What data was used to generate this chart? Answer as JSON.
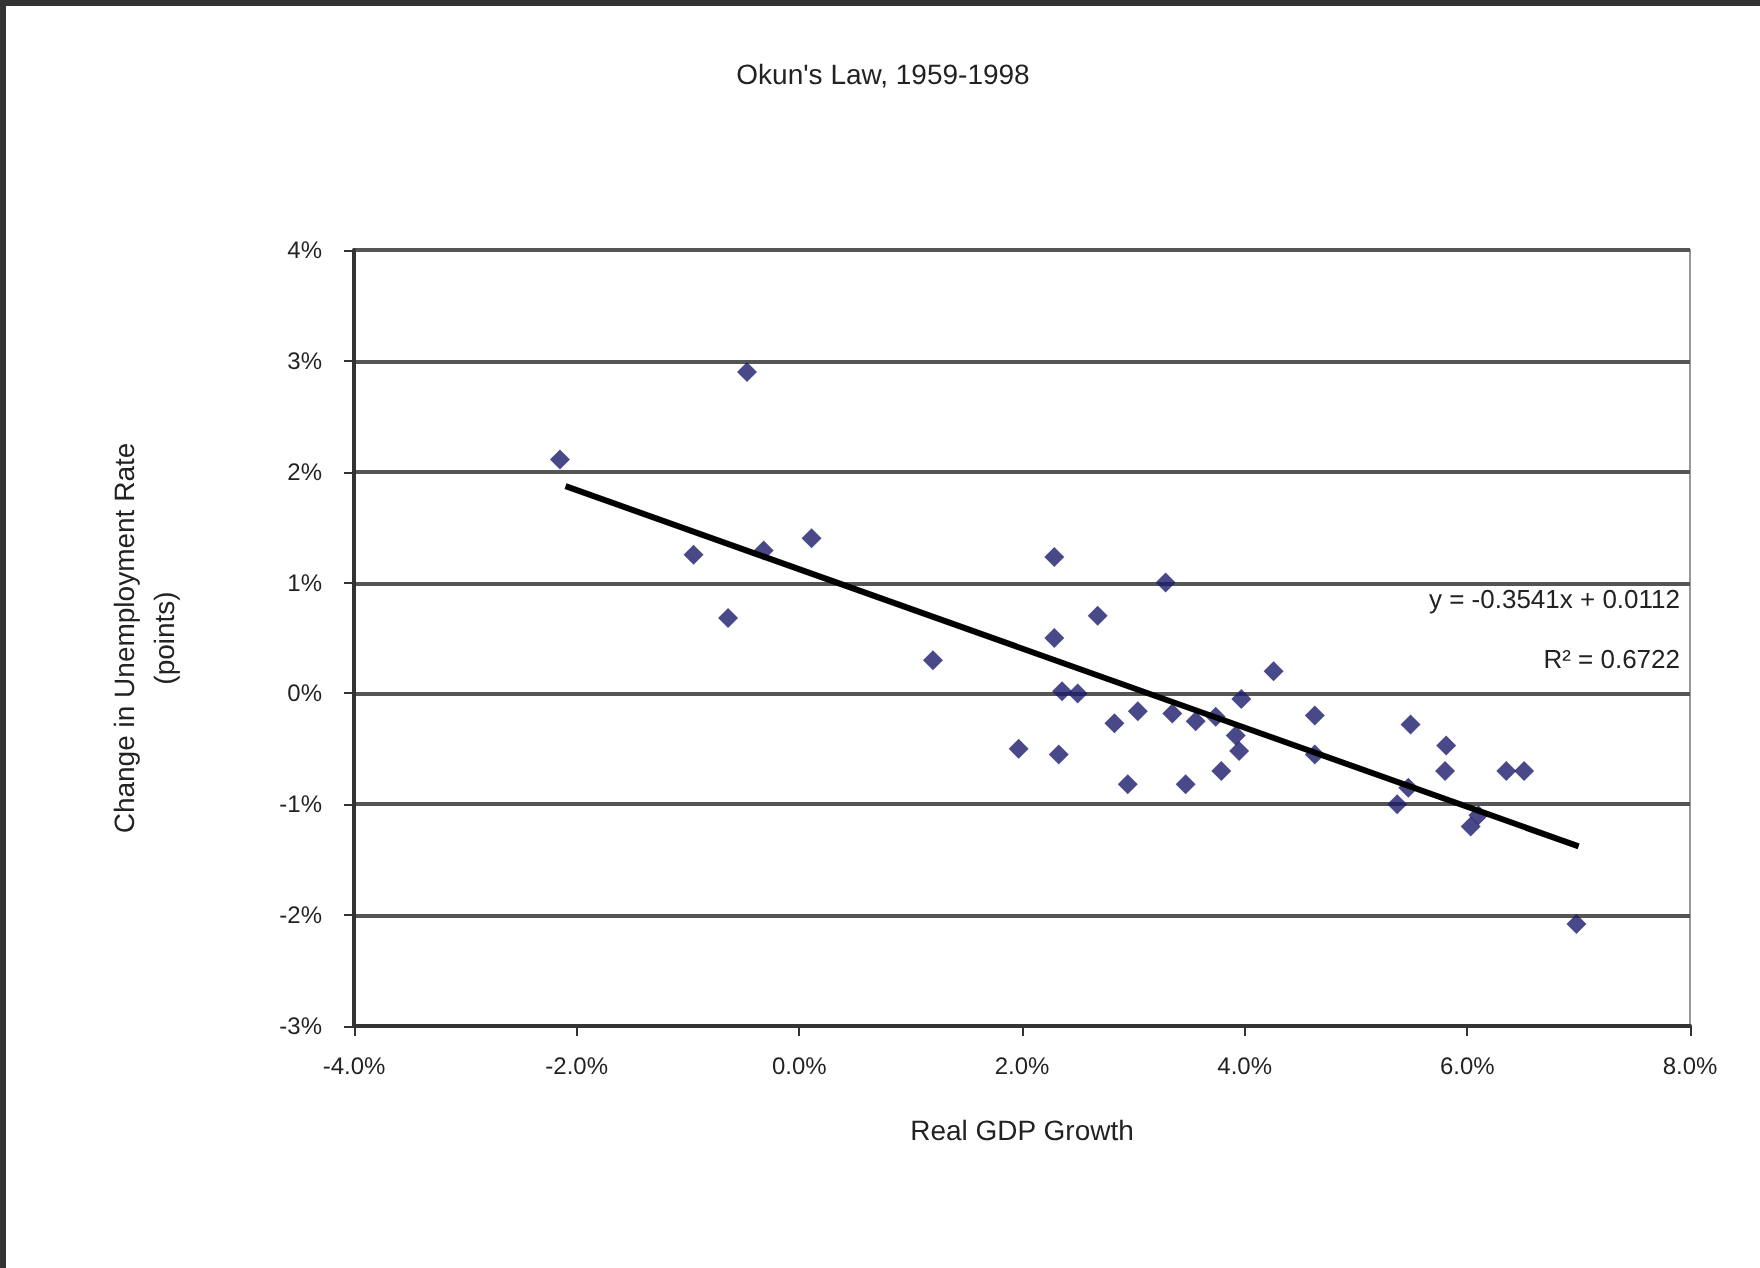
{
  "chart_data": {
    "type": "scatter",
    "title": "Okun's Law, 1959-1998",
    "xlabel": "Real GDP Growth",
    "ylabel": "Change in Unemployment Rate\n(points)",
    "annotations": [
      "y = -0.3541x + 0.0112",
      "R² = 0.6722"
    ],
    "xlim": [
      -4,
      8
    ],
    "ylim": [
      -3,
      4
    ],
    "xticks": [
      {
        "value": -4,
        "label": "-4.0%"
      },
      {
        "value": -2,
        "label": "-2.0%"
      },
      {
        "value": 0,
        "label": "0.0%"
      },
      {
        "value": 2,
        "label": "2.0%"
      },
      {
        "value": 4,
        "label": "4.0%"
      },
      {
        "value": 6,
        "label": "6.0%"
      },
      {
        "value": 8,
        "label": "8.0%"
      }
    ],
    "yticks": [
      {
        "value": -3,
        "label": "-3%"
      },
      {
        "value": -2,
        "label": "-2%"
      },
      {
        "value": -1,
        "label": "-1%"
      },
      {
        "value": 0,
        "label": "0%"
      },
      {
        "value": 1,
        "label": "1%"
      },
      {
        "value": 2,
        "label": "2%"
      },
      {
        "value": 3,
        "label": "3%"
      },
      {
        "value": 4,
        "label": "4%"
      }
    ],
    "grid": "y",
    "series": [
      {
        "marker": "diamond",
        "color": "#1c1c6b",
        "x": [
          -2.15,
          -0.47,
          -0.95,
          -0.32,
          0.11,
          -0.64,
          1.2,
          2.29,
          3.29,
          2.68,
          2.29,
          4.26,
          2.36,
          2.5,
          2.83,
          3.04,
          3.35,
          3.56,
          3.74,
          3.97,
          3.92,
          3.95,
          3.79,
          1.97,
          2.33,
          2.95,
          3.47,
          4.63,
          4.63,
          5.49,
          5.81,
          5.8,
          6.35,
          6.51,
          5.37,
          5.47,
          6.03,
          6.1,
          6.98
        ],
        "values": [
          2.11,
          2.9,
          1.25,
          1.29,
          1.4,
          0.68,
          0.3,
          1.23,
          1.0,
          0.7,
          0.5,
          0.2,
          0.02,
          0.0,
          -0.27,
          -0.16,
          -0.18,
          -0.25,
          -0.21,
          -0.05,
          -0.38,
          -0.52,
          -0.7,
          -0.5,
          -0.55,
          -0.82,
          -0.82,
          -0.2,
          -0.55,
          -0.28,
          -0.47,
          -0.7,
          -0.7,
          -0.7,
          -1.0,
          -0.85,
          -1.2,
          -1.1,
          -2.08
        ]
      },
      {
        "type": "line",
        "marker": "none",
        "color": "#000000",
        "x": [
          -2.1,
          7.0
        ],
        "values": [
          1.87,
          -1.38
        ]
      }
    ]
  }
}
